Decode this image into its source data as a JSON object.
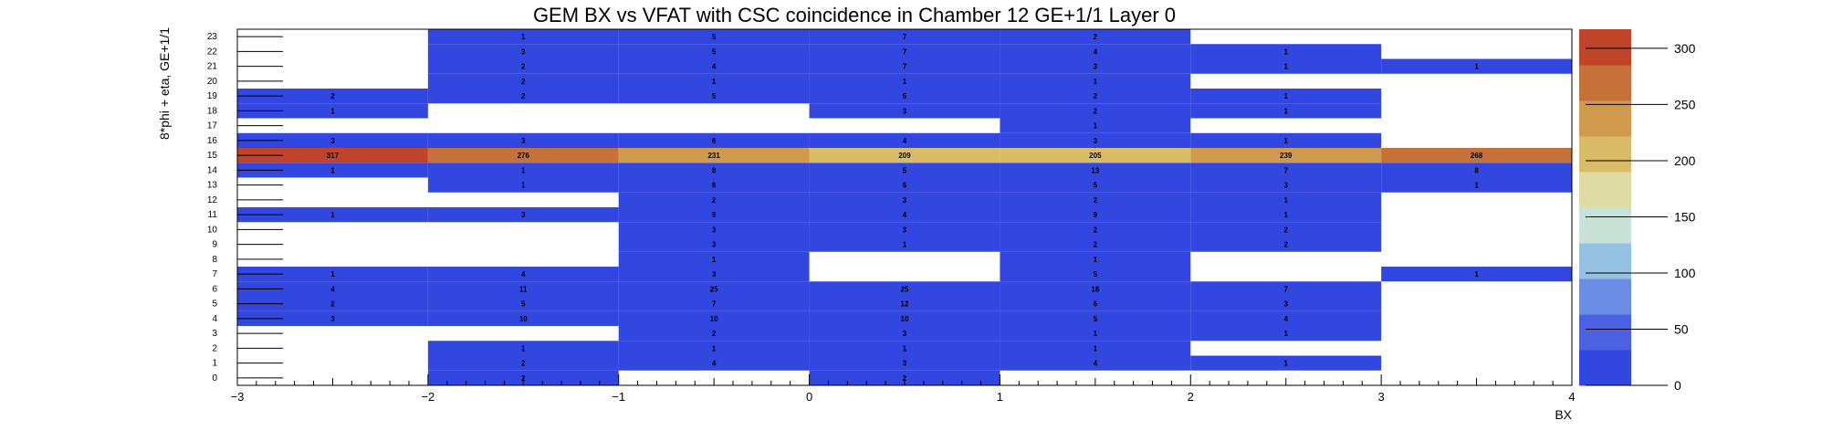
{
  "chart_data": {
    "type": "heatmap",
    "title": "GEM BX vs VFAT with CSC coincidence in Chamber 12 GE+1/1 Layer 0",
    "xlabel": "BX",
    "ylabel": "8*phi + eta, GE+1/1",
    "xlim": [
      -3,
      4
    ],
    "ylim": [
      0,
      24
    ],
    "x_bins": [
      -3,
      -2,
      -1,
      0,
      1,
      2,
      3,
      4
    ],
    "x_ticks": [
      "−3",
      "−2",
      "−1",
      "0",
      "1",
      "2",
      "3",
      "4"
    ],
    "y_ticks": [
      "0",
      "1",
      "2",
      "3",
      "4",
      "5",
      "6",
      "7",
      "8",
      "9",
      "10",
      "11",
      "12",
      "13",
      "14",
      "15",
      "16",
      "17",
      "18",
      "19",
      "20",
      "21",
      "22",
      "23"
    ],
    "zlim": [
      0,
      317
    ],
    "palette_ticks": [
      "0",
      "50",
      "100",
      "150",
      "200",
      "250",
      "300"
    ],
    "rows": [
      {
        "y": 0,
        "values": [
          0,
          2,
          0,
          2,
          0,
          0,
          0
        ]
      },
      {
        "y": 1,
        "values": [
          0,
          2,
          4,
          3,
          4,
          1,
          0
        ]
      },
      {
        "y": 2,
        "values": [
          0,
          1,
          1,
          1,
          1,
          0,
          0
        ]
      },
      {
        "y": 3,
        "values": [
          0,
          0,
          2,
          3,
          1,
          1,
          0
        ]
      },
      {
        "y": 4,
        "values": [
          3,
          10,
          10,
          10,
          5,
          4,
          0
        ]
      },
      {
        "y": 5,
        "values": [
          2,
          5,
          7,
          12,
          6,
          3,
          0
        ]
      },
      {
        "y": 6,
        "values": [
          4,
          11,
          25,
          25,
          18,
          7,
          0
        ]
      },
      {
        "y": 7,
        "values": [
          1,
          4,
          3,
          0,
          5,
          0,
          1
        ]
      },
      {
        "y": 8,
        "values": [
          0,
          0,
          1,
          0,
          1,
          0,
          0
        ]
      },
      {
        "y": 9,
        "values": [
          0,
          0,
          3,
          1,
          2,
          2,
          0
        ]
      },
      {
        "y": 10,
        "values": [
          0,
          0,
          3,
          3,
          2,
          2,
          0
        ]
      },
      {
        "y": 11,
        "values": [
          1,
          3,
          9,
          4,
          9,
          1,
          0
        ]
      },
      {
        "y": 12,
        "values": [
          0,
          0,
          2,
          3,
          2,
          1,
          0
        ]
      },
      {
        "y": 13,
        "values": [
          0,
          1,
          6,
          6,
          5,
          3,
          1
        ]
      },
      {
        "y": 14,
        "values": [
          1,
          1,
          8,
          5,
          13,
          7,
          8
        ]
      },
      {
        "y": 15,
        "values": [
          317,
          276,
          231,
          209,
          205,
          239,
          268
        ]
      },
      {
        "y": 16,
        "values": [
          3,
          3,
          6,
          4,
          3,
          1,
          0
        ]
      },
      {
        "y": 17,
        "values": [
          0,
          0,
          0,
          0,
          1,
          0,
          0
        ]
      },
      {
        "y": 18,
        "values": [
          1,
          0,
          0,
          3,
          2,
          1,
          0
        ]
      },
      {
        "y": 19,
        "values": [
          2,
          2,
          5,
          5,
          2,
          1,
          0
        ]
      },
      {
        "y": 20,
        "values": [
          0,
          2,
          1,
          1,
          1,
          0,
          0
        ]
      },
      {
        "y": 21,
        "values": [
          0,
          2,
          4,
          7,
          3,
          1,
          1
        ]
      },
      {
        "y": 22,
        "values": [
          0,
          3,
          5,
          7,
          4,
          1,
          0
        ]
      },
      {
        "y": 23,
        "values": [
          0,
          1,
          5,
          7,
          2,
          0,
          0
        ]
      }
    ],
    "palette_colors": [
      "#3246e0",
      "#4a62e2",
      "#6b8ee4",
      "#95c2e2",
      "#c9e2d8",
      "#dedca4",
      "#d9bc68",
      "#cf9a4c",
      "#c6703a",
      "#bf4428"
    ],
    "grid": false
  }
}
